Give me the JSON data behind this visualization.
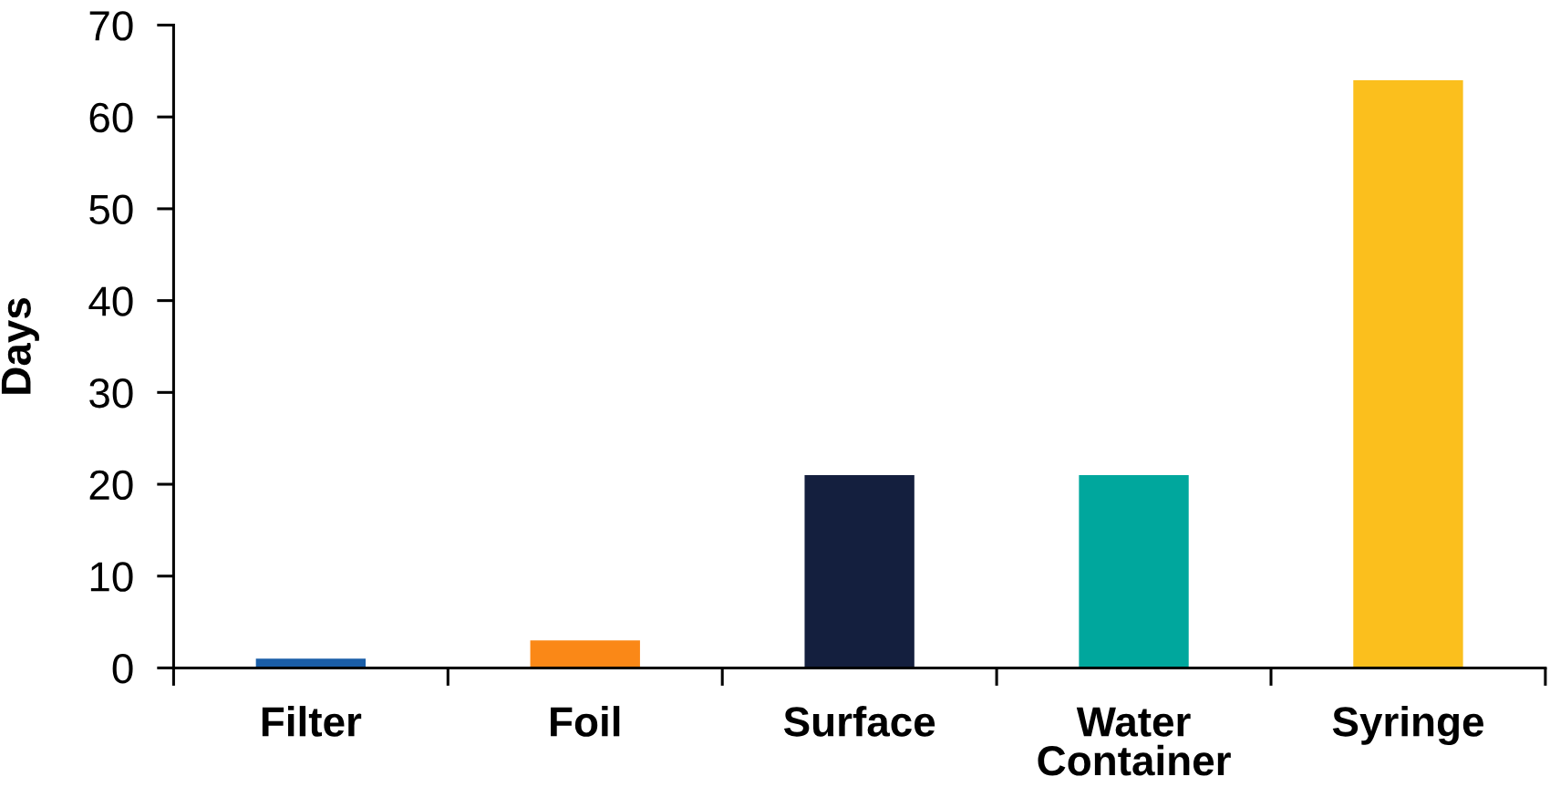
{
  "chart_data": {
    "type": "bar",
    "ylabel": "Days",
    "categories": [
      "Filter",
      "Foil",
      "Surface",
      "Water\nContainer",
      "Syringe"
    ],
    "values": [
      1,
      3,
      21,
      21,
      64
    ],
    "colors": [
      "#1a5ea8",
      "#fa8817",
      "#141f3e",
      "#00a79d",
      "#fbbf1d"
    ],
    "ylim": [
      0,
      70
    ],
    "yticks": [
      0,
      10,
      20,
      30,
      40,
      50,
      60,
      70
    ]
  }
}
